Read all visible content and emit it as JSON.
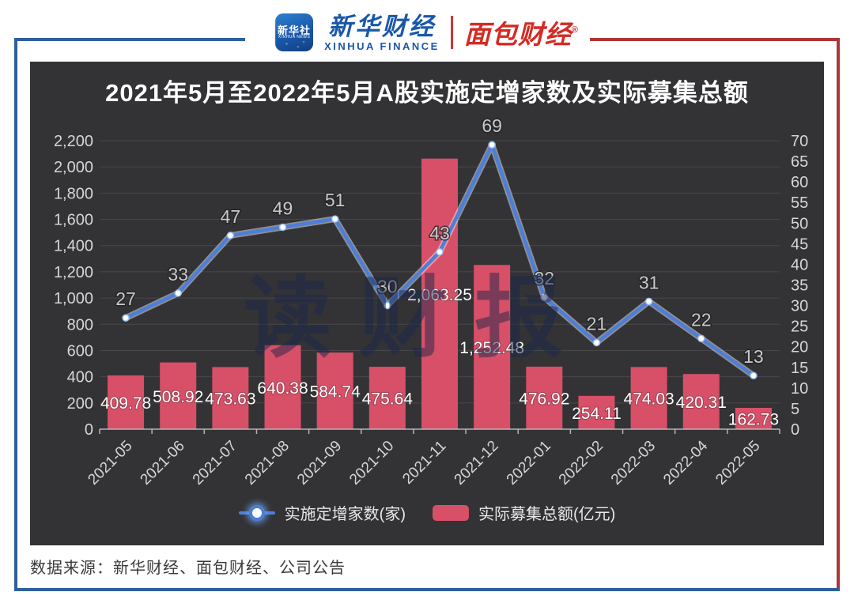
{
  "header": {
    "agency": {
      "line1": "新华社",
      "line2": "XINHUA NEWS"
    },
    "finance": {
      "cn": "新华财经",
      "en": "XINHUA FINANCE"
    },
    "bread": {
      "cn": "面包财经",
      "reg": "®"
    }
  },
  "chart_data": {
    "type": "bar+line combo",
    "title": "2021年5月至2022年5月A股实施定增家数及实际募集总额",
    "categories": [
      "2021-05",
      "2021-06",
      "2021-07",
      "2021-08",
      "2021-09",
      "2021-10",
      "2021-11",
      "2021-12",
      "2022-01",
      "2022-02",
      "2022-03",
      "2022-04",
      "2022-05"
    ],
    "series": [
      {
        "name": "实施定增家数(家)",
        "type": "line",
        "axis": "right",
        "values": [
          27,
          33,
          47,
          49,
          51,
          30,
          43,
          69,
          32,
          21,
          31,
          22,
          13
        ]
      },
      {
        "name": "实际募集总额(亿元)",
        "type": "bar",
        "axis": "left",
        "values": [
          409.78,
          508.92,
          473.63,
          640.38,
          584.74,
          475.64,
          2063.25,
          1252.48,
          476.92,
          254.11,
          474.03,
          420.31,
          162.73
        ]
      }
    ],
    "left_axis": {
      "min": 0,
      "max": 2200,
      "step": 200
    },
    "right_axis": {
      "min": 0,
      "max": 70,
      "step": 5
    },
    "grid": true,
    "legend_position": "bottom"
  },
  "colors": {
    "bar": "#d84f68",
    "line": "#4d7ed8",
    "panel_bg": "#333336",
    "grid": "#47474b",
    "axis_text": "#d6d6d6",
    "bar_label": "#ffffff",
    "line_label": "#c9c9c9",
    "blue_border": "#2e5f9e",
    "red_border": "#b03535"
  },
  "watermark": "读财报",
  "footer": {
    "source": "数据来源：新华财经、面包财经、公司公告"
  }
}
